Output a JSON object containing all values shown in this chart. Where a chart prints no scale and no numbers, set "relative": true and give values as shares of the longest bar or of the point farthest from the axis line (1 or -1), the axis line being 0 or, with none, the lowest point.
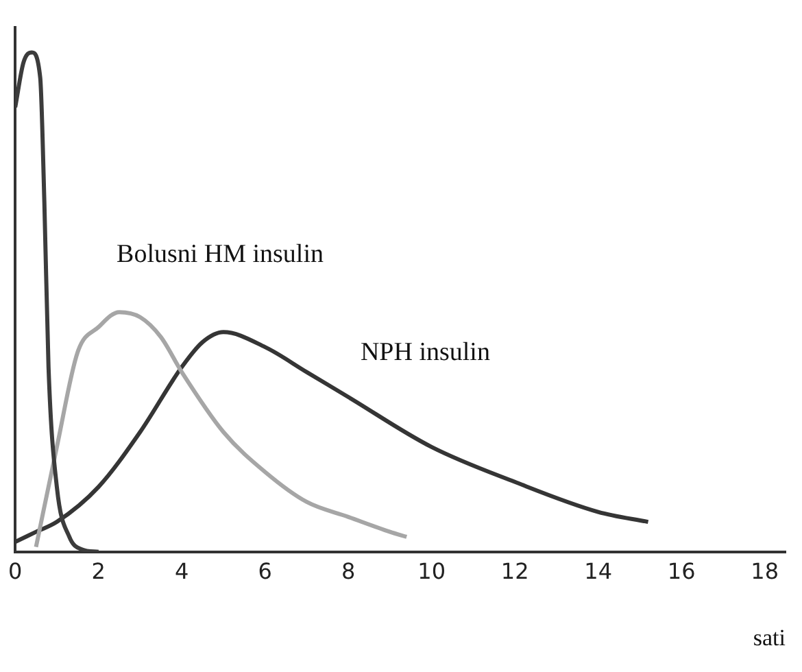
{
  "chart_data": {
    "type": "line",
    "relative": true,
    "xlabel": "sati",
    "xlim": [
      0,
      18.5
    ],
    "xticks": [
      0,
      2,
      4,
      6,
      8,
      10,
      12,
      14,
      16,
      18
    ],
    "legend": false,
    "grid": false,
    "marker": "none",
    "series": [
      {
        "color": "#3c3c3c",
        "x": [
          0,
          0.2,
          0.4,
          0.6,
          0.7,
          0.8,
          1.0,
          1.3,
          1.6,
          2.0
        ],
        "values": [
          0.89,
          0.98,
          1.0,
          0.95,
          0.7,
          0.37,
          0.13,
          0.03,
          0.005,
          0
        ]
      },
      {
        "name": "Bolusni HM insulin",
        "color": "#a6a6a6",
        "x": [
          0.5,
          1,
          1.5,
          2,
          2.5,
          3,
          3.5,
          4,
          5,
          6,
          7,
          8,
          9,
          9.4
        ],
        "values": [
          0.01,
          0.21,
          0.4,
          0.45,
          0.48,
          0.47,
          0.43,
          0.36,
          0.24,
          0.16,
          0.1,
          0.07,
          0.04,
          0.03
        ]
      },
      {
        "name": "NPH insulin",
        "color": "#353535",
        "x": [
          0,
          0.5,
          1,
          2,
          3,
          4,
          4.5,
          5,
          6,
          7,
          8,
          10,
          12,
          14,
          15.2
        ],
        "values": [
          0.02,
          0.04,
          0.06,
          0.13,
          0.24,
          0.37,
          0.42,
          0.44,
          0.41,
          0.36,
          0.31,
          0.21,
          0.14,
          0.08,
          0.06
        ]
      }
    ]
  }
}
